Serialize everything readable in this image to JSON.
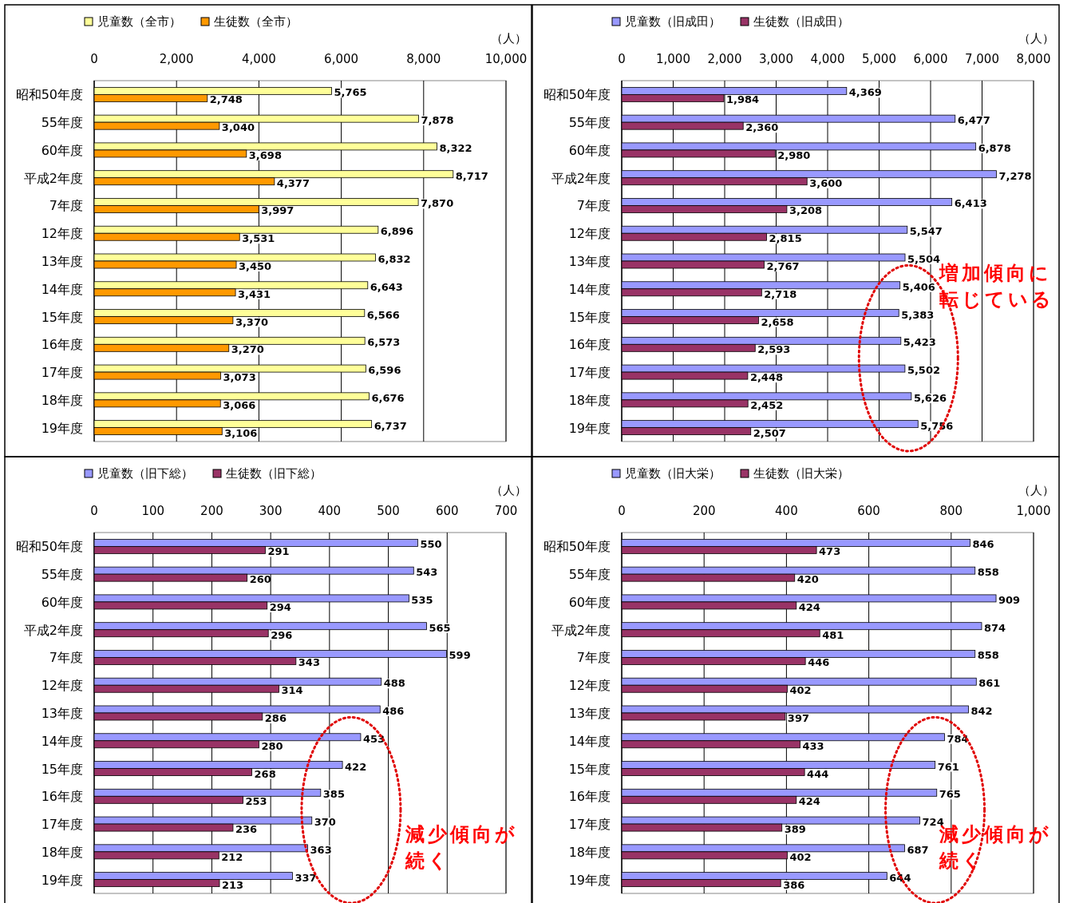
{
  "chart_data": [
    {
      "type": "bar",
      "orientation": "horizontal",
      "xlabel": "（人）",
      "categories": [
        "昭和50年度",
        "55年度",
        "60年度",
        "平成2年度",
        "7年度",
        "12年度",
        "13年度",
        "14年度",
        "15年度",
        "16年度",
        "17年度",
        "18年度",
        "19年度"
      ],
      "series": [
        {
          "name": "児童数（全市）",
          "color": "#ffff99",
          "values": [
            5765,
            7878,
            8322,
            8717,
            7870,
            6896,
            6832,
            6643,
            6566,
            6573,
            6596,
            6676,
            6737
          ],
          "value_labels": [
            "5,765",
            "7,878",
            "8,322",
            "8,717",
            "7,870",
            "6,896",
            "6,832",
            "6,643",
            "6,566",
            "6,573",
            "6,596",
            "6,676",
            "6,737"
          ]
        },
        {
          "name": "生徒数（全市）",
          "color": "#ff9900",
          "values": [
            2748,
            3040,
            3698,
            4377,
            3997,
            3531,
            3450,
            3431,
            3370,
            3270,
            3073,
            3066,
            3106
          ],
          "value_labels": [
            "2,748",
            "3,040",
            "3,698",
            "4,377",
            "3,997",
            "3,531",
            "3,450",
            "3,431",
            "3,370",
            "3,270",
            "3,073",
            "3,066",
            "3,106"
          ]
        }
      ],
      "xlim": [
        0,
        10000
      ],
      "xticks": [
        {
          "value": 0,
          "label": "0"
        },
        {
          "value": 2000,
          "label": "2,000"
        },
        {
          "value": 4000,
          "label": "4,000"
        },
        {
          "value": 6000,
          "label": "6,000"
        },
        {
          "value": 8000,
          "label": "8,000"
        },
        {
          "value": 10000,
          "label": "10,000"
        }
      ],
      "grid": "x",
      "legend": "top"
    },
    {
      "type": "bar",
      "orientation": "horizontal",
      "xlabel": "（人）",
      "categories": [
        "昭和50年度",
        "55年度",
        "60年度",
        "平成2年度",
        "7年度",
        "12年度",
        "13年度",
        "14年度",
        "15年度",
        "16年度",
        "17年度",
        "18年度",
        "19年度"
      ],
      "series": [
        {
          "name": "児童数（旧成田）",
          "color": "#9999ff",
          "values": [
            4369,
            6477,
            6878,
            7278,
            6413,
            5547,
            5504,
            5406,
            5383,
            5423,
            5502,
            5626,
            5756
          ],
          "value_labels": [
            "4,369",
            "6,477",
            "6,878",
            "7,278",
            "6,413",
            "5,547",
            "5,504",
            "5,406",
            "5,383",
            "5,423",
            "5,502",
            "5,626",
            "5,756"
          ]
        },
        {
          "name": "生徒数（旧成田）",
          "color": "#993366",
          "values": [
            1984,
            2360,
            2980,
            3600,
            3208,
            2815,
            2767,
            2718,
            2658,
            2593,
            2448,
            2452,
            2507
          ],
          "value_labels": [
            "1,984",
            "2,360",
            "2,980",
            "3,600",
            "3,208",
            "2,815",
            "2,767",
            "2,718",
            "2,658",
            "2,593",
            "2,448",
            "2,452",
            "2,507"
          ]
        }
      ],
      "xlim": [
        0,
        8000
      ],
      "xticks": [
        {
          "value": 0,
          "label": "0"
        },
        {
          "value": 1000,
          "label": "1,000"
        },
        {
          "value": 2000,
          "label": "2,000"
        },
        {
          "value": 3000,
          "label": "3,000"
        },
        {
          "value": 4000,
          "label": "4,000"
        },
        {
          "value": 5000,
          "label": "5,000"
        },
        {
          "value": 6000,
          "label": "6,000"
        },
        {
          "value": 7000,
          "label": "7,000"
        },
        {
          "value": 8000,
          "label": "8,000"
        }
      ],
      "grid": "x",
      "legend": "top",
      "annotations": [
        "増加傾向に",
        "転じている"
      ]
    },
    {
      "type": "bar",
      "orientation": "horizontal",
      "xlabel": "（人）",
      "categories": [
        "昭和50年度",
        "55年度",
        "60年度",
        "平成2年度",
        "7年度",
        "12年度",
        "13年度",
        "14年度",
        "15年度",
        "16年度",
        "17年度",
        "18年度",
        "19年度"
      ],
      "series": [
        {
          "name": "児童数（旧下総）",
          "color": "#9999ff",
          "values": [
            550,
            543,
            535,
            565,
            599,
            488,
            486,
            453,
            422,
            385,
            370,
            363,
            337
          ]
        },
        {
          "name": "生徒数（旧下総）",
          "color": "#993366",
          "values": [
            291,
            260,
            294,
            296,
            343,
            314,
            286,
            280,
            268,
            253,
            236,
            212,
            213
          ]
        }
      ],
      "xlim": [
        0,
        700
      ],
      "xticks": [
        0,
        100,
        200,
        300,
        400,
        500,
        600,
        700
      ],
      "grid": "x",
      "legend": "top",
      "data_labels": true,
      "annotations": [
        "減少傾向が",
        "続く"
      ]
    },
    {
      "type": "bar",
      "orientation": "horizontal",
      "xlabel": "（人）",
      "categories": [
        "昭和50年度",
        "55年度",
        "60年度",
        "平成2年度",
        "7年度",
        "12年度",
        "13年度",
        "14年度",
        "15年度",
        "16年度",
        "17年度",
        "18年度",
        "19年度"
      ],
      "series": [
        {
          "name": "児童数（旧大栄）",
          "color": "#9999ff",
          "values": [
            846,
            858,
            909,
            874,
            858,
            861,
            842,
            784,
            761,
            765,
            724,
            687,
            644
          ]
        },
        {
          "name": "生徒数（旧大栄）",
          "color": "#993366",
          "values": [
            473,
            420,
            424,
            481,
            446,
            402,
            397,
            433,
            444,
            424,
            389,
            402,
            386
          ]
        }
      ],
      "xlim": [
        0,
        1000
      ],
      "xticks": [
        0,
        200,
        400,
        600,
        800,
        {
          "value": 1000,
          "label": "1,000"
        }
      ],
      "grid": "x",
      "legend": "top",
      "data_labels": true,
      "annotations": [
        "減少傾向が",
        "続く"
      ]
    }
  ]
}
